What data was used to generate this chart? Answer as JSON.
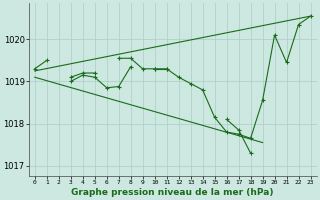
{
  "title": "Graphe pression niveau de la mer (hPa)",
  "xlabel_hours": [
    0,
    1,
    2,
    3,
    4,
    5,
    6,
    7,
    8,
    9,
    10,
    11,
    12,
    13,
    14,
    15,
    16,
    17,
    18,
    19,
    20,
    21,
    22,
    23
  ],
  "line_upper_diag": {
    "x": [
      0,
      23
    ],
    "y": [
      1019.25,
      1020.55
    ]
  },
  "line_lower_diag": {
    "x": [
      0,
      19
    ],
    "y": [
      1019.1,
      1017.55
    ]
  },
  "line_main": [
    1019.3,
    1019.5,
    null,
    1019.1,
    1019.2,
    1019.2,
    null,
    1019.55,
    1019.55,
    1019.3,
    1019.3,
    1019.3,
    1019.1,
    1018.95,
    1018.8,
    1018.15,
    1017.8,
    1017.75,
    1017.65,
    1018.55,
    1020.1,
    1019.45,
    1020.35,
    1020.55
  ],
  "line_sub": [
    null,
    null,
    null,
    1019.0,
    1019.15,
    1019.1,
    1018.85,
    1018.88,
    1019.35,
    null,
    1019.3,
    1019.3,
    null,
    null,
    null,
    null,
    1018.1,
    1017.85,
    1017.3,
    null,
    null,
    null,
    null,
    null
  ],
  "ylim": [
    1016.75,
    1020.85
  ],
  "yticks": [
    1017,
    1018,
    1019,
    1020
  ],
  "line_color": "#1a6b1a",
  "bg_color": "#cce8e0",
  "grid_color": "#aaccC4",
  "fig_width": 3.2,
  "fig_height": 2.0,
  "dpi": 100
}
